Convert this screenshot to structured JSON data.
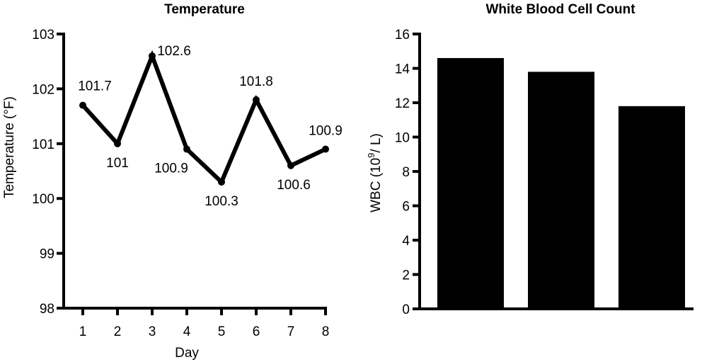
{
  "chart_data": [
    {
      "type": "line",
      "title": "Temperature",
      "xlabel": "Day",
      "ylabel": "Temperature (°F)",
      "x": [
        1,
        2,
        3,
        4,
        5,
        6,
        7,
        8
      ],
      "xticks": [
        "1",
        "2",
        "3",
        "4",
        "5",
        "6",
        "7",
        "8"
      ],
      "values": [
        101.7,
        101.0,
        102.6,
        100.9,
        100.3,
        101.8,
        100.6,
        100.9
      ],
      "data_labels": [
        "101.7",
        "101",
        "102.6",
        "100.9",
        "100.3",
        "101.8",
        "100.6",
        "100.9"
      ],
      "ylim": [
        98,
        103
      ],
      "yticks": [
        "98",
        "99",
        "100",
        "101",
        "102",
        "103"
      ],
      "grid": false,
      "legend": "none",
      "color": "#000000"
    },
    {
      "type": "bar",
      "title": "White Blood Cell Count",
      "xlabel": "",
      "ylabel": "WBC (10⁹/ L)",
      "ylabel_parts": {
        "pre": "WBC (10",
        "sup": "9",
        "post": "/ L)"
      },
      "categories": [
        "",
        "",
        ""
      ],
      "values": [
        14.6,
        13.8,
        11.8
      ],
      "ylim": [
        0,
        16
      ],
      "yticks": [
        "0",
        "2",
        "4",
        "6",
        "8",
        "10",
        "12",
        "14",
        "16"
      ],
      "grid": false,
      "legend": "none",
      "color": "#000000"
    }
  ]
}
